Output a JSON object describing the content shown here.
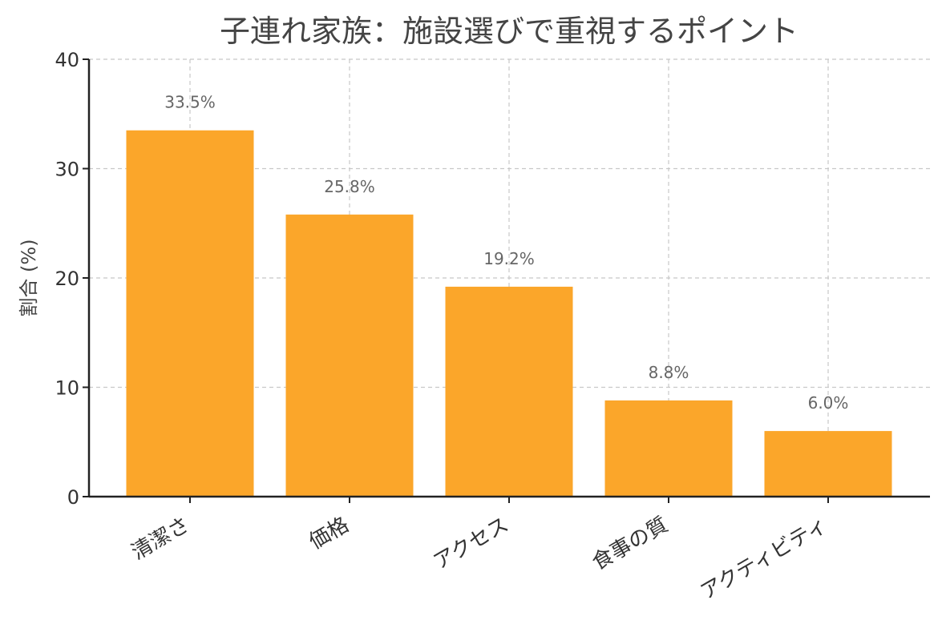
{
  "chart_data": {
    "type": "bar",
    "title": "子連れ家族：施設選びで重視するポイント",
    "xlabel": "",
    "ylabel": "割合 (%)",
    "categories": [
      "清潔さ",
      "価格",
      "アクセス",
      "食事の質",
      "アクティビティ"
    ],
    "values": [
      33.5,
      25.8,
      19.2,
      8.8,
      6.0
    ],
    "data_labels": [
      "33.5%",
      "25.8%",
      "19.2%",
      "8.8%",
      "6.0%"
    ],
    "ylim": [
      0,
      40
    ],
    "yticks": [
      0,
      10,
      20,
      30,
      40
    ],
    "grid": true,
    "bar_color": "#FBA62A"
  }
}
